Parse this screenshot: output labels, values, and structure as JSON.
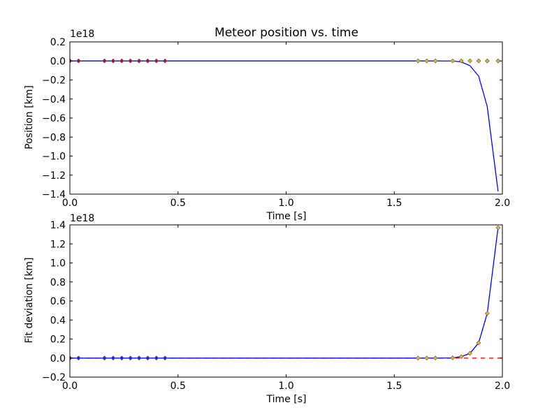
{
  "chart_data": [
    {
      "type": "line",
      "title": "Meteor position vs. time",
      "xlabel": "Time [s]",
      "ylabel": "Position [km]",
      "offset_label": "1e18",
      "xlim": [
        0.0,
        2.0
      ],
      "ylim": [
        -1.4,
        0.2
      ],
      "xticks": [
        "0.0",
        "0.5",
        "1.0",
        "1.5",
        "2.0"
      ],
      "yticks": [
        "−1.4",
        "−1.2",
        "−1.0",
        "−0.8",
        "−0.6",
        "−0.4",
        "−0.2",
        "0.0",
        "0.2"
      ],
      "grid": false,
      "series": [
        {
          "kind": "markers",
          "color": "#cc0044",
          "x": [
            0.0,
            0.04,
            0.16,
            0.2,
            0.24,
            0.28,
            0.32,
            0.36,
            0.4,
            0.44
          ],
          "y": [
            0,
            0,
            0,
            0,
            0,
            0,
            0,
            0,
            0,
            0
          ]
        },
        {
          "kind": "markers",
          "color": "#e6b422",
          "x": [
            1.61,
            1.65,
            1.69,
            1.77,
            1.81,
            1.85,
            1.89,
            1.93,
            1.98
          ],
          "y": [
            0,
            0,
            0,
            0,
            0,
            0,
            0,
            0,
            0
          ]
        },
        {
          "kind": "line",
          "color": "#0000ff",
          "x": [
            0.0,
            0.44,
            1.0,
            1.61,
            1.69,
            1.77,
            1.81,
            1.85,
            1.89,
            1.93,
            1.98
          ],
          "y": [
            0,
            0,
            0,
            0,
            0,
            -0.001,
            -0.01,
            -0.05,
            -0.16,
            -0.48,
            -1.37
          ]
        }
      ]
    },
    {
      "type": "line",
      "title": "",
      "xlabel": "Time [s]",
      "ylabel": "Fit deviation [km]",
      "offset_label": "1e18",
      "xlim": [
        0.0,
        2.0
      ],
      "ylim": [
        -0.2,
        1.4
      ],
      "xticks": [
        "0.0",
        "0.5",
        "1.0",
        "1.5",
        "2.0"
      ],
      "yticks": [
        "−0.2",
        "0.0",
        "0.2",
        "0.4",
        "0.6",
        "0.8",
        "1.0",
        "1.2",
        "1.4"
      ],
      "grid": false,
      "series": [
        {
          "kind": "dashed",
          "color": "#ff0000",
          "x": [
            0.0,
            2.0
          ],
          "y": [
            0,
            0
          ]
        },
        {
          "kind": "line",
          "color": "#0000ff",
          "x": [
            0.0,
            0.44,
            1.0,
            1.61,
            1.69,
            1.77,
            1.81,
            1.85,
            1.89,
            1.93,
            1.98
          ],
          "y": [
            0,
            0,
            0,
            0,
            0,
            0.002,
            0.015,
            0.05,
            0.16,
            0.47,
            1.37
          ]
        },
        {
          "kind": "markers",
          "color": "#2222ee",
          "x": [
            0.0,
            0.04,
            0.16,
            0.2,
            0.24,
            0.28,
            0.32,
            0.36,
            0.4,
            0.44
          ],
          "y": [
            0,
            0,
            0,
            0,
            0,
            0,
            0,
            0,
            0,
            0
          ]
        },
        {
          "kind": "markers",
          "color": "#e6b422",
          "x": [
            1.61,
            1.65,
            1.69,
            1.77,
            1.81,
            1.85,
            1.89,
            1.93,
            1.98
          ],
          "y": [
            0,
            0,
            0,
            0.002,
            0.015,
            0.05,
            0.16,
            0.47,
            1.37
          ]
        }
      ]
    }
  ]
}
